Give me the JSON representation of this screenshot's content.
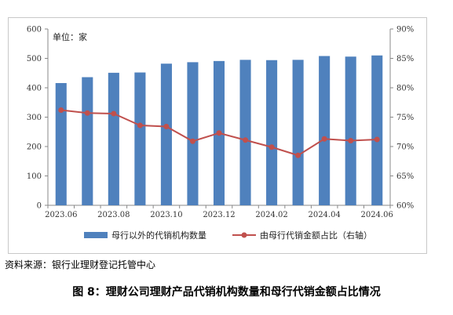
{
  "chart_data": {
    "type": "bar",
    "unit_label": "单位：家",
    "categories": [
      "2023.06",
      "2023.07",
      "2023.08",
      "2023.09",
      "2023.10",
      "2023.11",
      "2023.12",
      "2024.01",
      "2024.02",
      "2024.03",
      "2024.04",
      "2024.05",
      "2024.06"
    ],
    "x_tick_labels": [
      "2023.06",
      "2023.08",
      "2023.10",
      "2023.12",
      "2024.02",
      "2024.04",
      "2024.06"
    ],
    "left_axis": {
      "min": 0,
      "max": 600,
      "ticks": [
        "0",
        "100",
        "200",
        "300",
        "400",
        "500",
        "600"
      ]
    },
    "right_axis": {
      "min": 60,
      "max": 90,
      "ticks": [
        "60%",
        "65%",
        "70%",
        "75%",
        "80%",
        "85%",
        "90%"
      ]
    },
    "grid": false,
    "legend_position": "bottom",
    "series": [
      {
        "name": "母行以外的代销机构数量",
        "type": "bar",
        "axis": "left",
        "color": "#4f81bd",
        "values": [
          416,
          436,
          451,
          452,
          482,
          487,
          491,
          495,
          494,
          495,
          508,
          506,
          510
        ]
      },
      {
        "name": "由母行代销金额占比（右轴）",
        "type": "line",
        "axis": "right",
        "color": "#c0504d",
        "values": [
          76.2,
          75.7,
          75.6,
          73.6,
          73.4,
          70.9,
          72.3,
          71.1,
          69.9,
          68.5,
          71.3,
          71.0,
          71.2
        ]
      }
    ]
  },
  "source_text": "资料来源：银行业理财登记托管中心",
  "caption": "图 8：理财公司理财产品代销机构数量和母行代销金额占比情况"
}
